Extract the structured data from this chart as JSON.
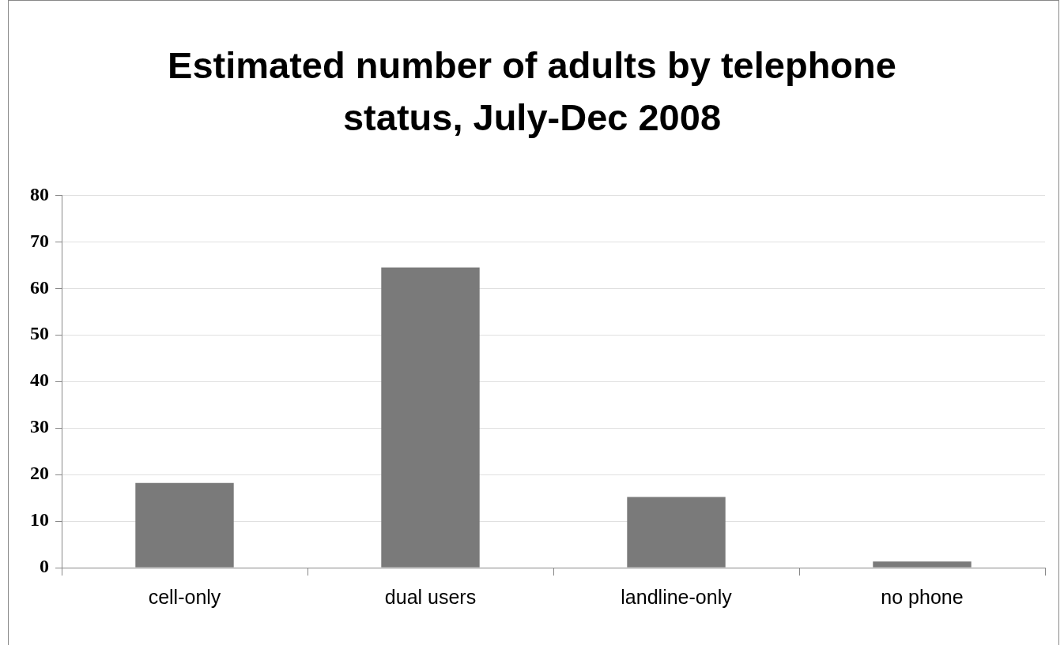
{
  "chart_data": {
    "type": "bar",
    "title": "Estimated number of adults by telephone status, July-Dec 2008",
    "categories": [
      "cell-only",
      "dual users",
      "landline-only",
      "no phone"
    ],
    "values": [
      18.2,
      64.5,
      15.2,
      1.3
    ],
    "color": "#7a7a7a",
    "ylim": [
      0,
      80
    ],
    "yticks": [
      0,
      10,
      20,
      30,
      40,
      50,
      60,
      70,
      80
    ],
    "grid": "y",
    "legend": false
  }
}
